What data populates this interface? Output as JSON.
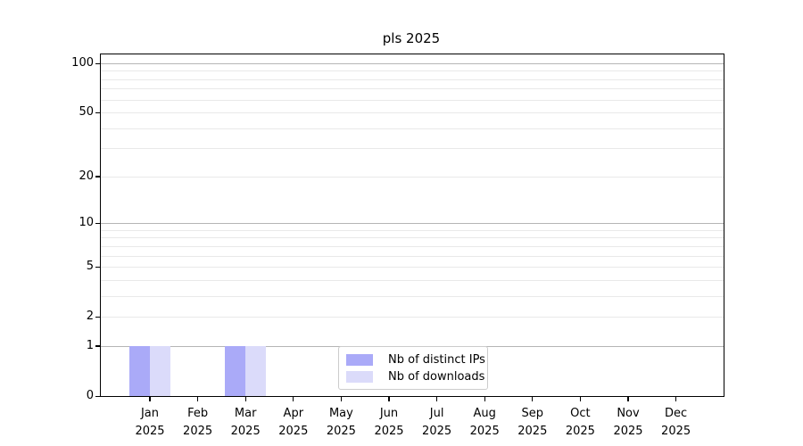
{
  "chart_data": {
    "type": "bar",
    "title": "pls 2025",
    "categories": [
      "Jan",
      "Feb",
      "Mar",
      "Apr",
      "May",
      "Jun",
      "Jul",
      "Aug",
      "Sep",
      "Oct",
      "Nov",
      "Dec"
    ],
    "x_tick_year": "2025",
    "series": [
      {
        "name": "Nb of distinct IPs",
        "color": "#aaaaf8",
        "values": [
          1,
          0,
          1,
          0,
          0,
          0,
          0,
          0,
          0,
          0,
          0,
          0
        ]
      },
      {
        "name": "Nb of downloads",
        "color": "#dbdbfa",
        "values": [
          1,
          0,
          1,
          0,
          0,
          0,
          0,
          0,
          0,
          0,
          0,
          0
        ]
      }
    ],
    "yscale": "log1p",
    "ylim": [
      0,
      100
    ],
    "ytick_labels": [
      0,
      1,
      2,
      5,
      10,
      20,
      50,
      100
    ],
    "grid": {
      "on": true,
      "major_lines": [
        1,
        10,
        100
      ],
      "minor_lines": [
        2,
        3,
        4,
        5,
        6,
        7,
        8,
        9,
        20,
        30,
        40,
        50,
        60,
        70,
        80,
        90
      ],
      "major_color": "#b5b5b5",
      "minor_color": "#e9e9e9"
    },
    "legend_position": "lower center",
    "axis_color": "#000000",
    "background_color": "#ffffff"
  }
}
